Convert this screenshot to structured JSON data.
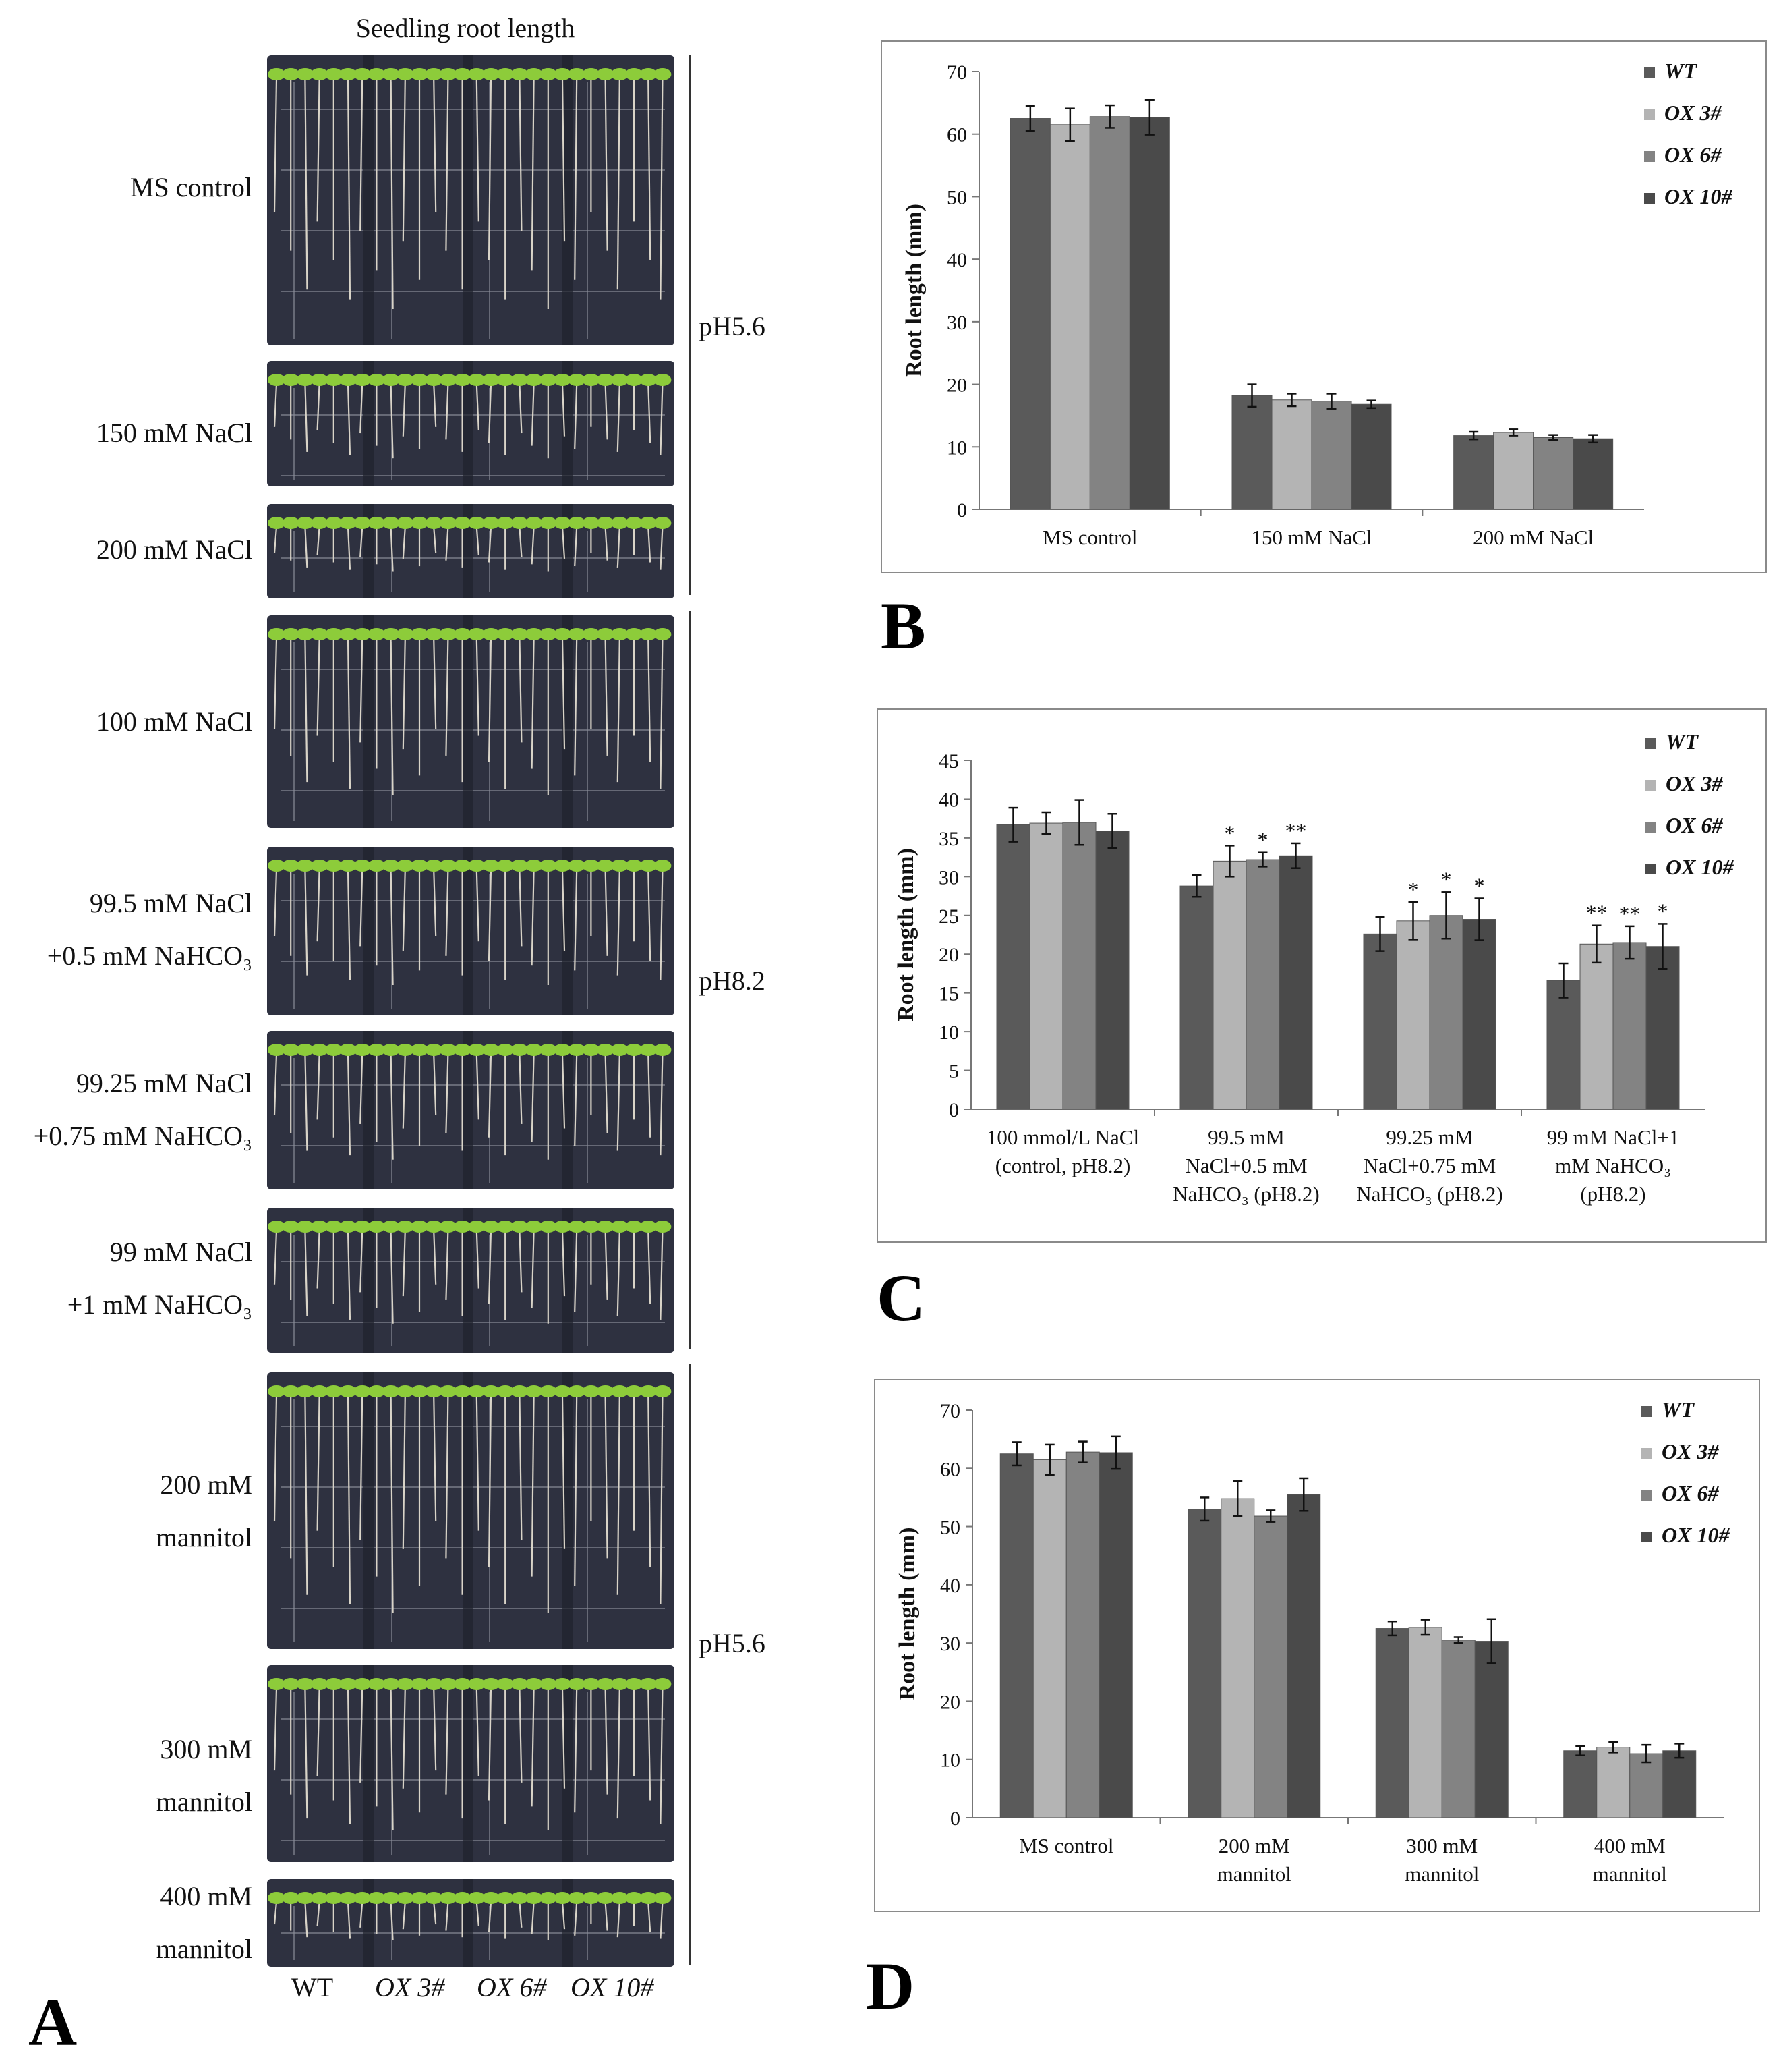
{
  "panel_a": {
    "title": "Seedling root length",
    "letter": "A",
    "plates": [
      {
        "label_lines": [
          "MS control"
        ]
      },
      {
        "label_lines": [
          "150 mM NaCl"
        ]
      },
      {
        "label_lines": [
          "200 mM NaCl"
        ]
      },
      {
        "label_lines": [
          "100 mM NaCl"
        ]
      },
      {
        "label_lines": [
          "99.5 mM NaCl",
          "+0.5 mM NaHCO₃"
        ]
      },
      {
        "label_lines": [
          "99.25 mM NaCl",
          "+0.75 mM NaHCO₃"
        ]
      },
      {
        "label_lines": [
          "99 mM NaCl",
          "+1 mM NaHCO₃"
        ]
      },
      {
        "label_lines": [
          "200 mM",
          "mannitol"
        ]
      },
      {
        "label_lines": [
          "300 mM",
          "mannitol"
        ]
      },
      {
        "label_lines": [
          "400 mM",
          "mannitol"
        ]
      }
    ],
    "ph_labels": [
      "pH5.6",
      "pH8.2",
      "pH5.6"
    ],
    "genotypes": [
      "WT",
      "OX 3#",
      "OX 6#",
      "OX 10#"
    ]
  },
  "colors": {
    "WT": "#5a5a5a",
    "OX 3#": "#b4b4b4",
    "OX 6#": "#838383",
    "OX 10#": "#4a4a4a",
    "plate_bg": "#2e3140",
    "leaf": "#8dcc3a",
    "root": "#d9d4c8"
  },
  "chart_data": [
    {
      "letter": "B",
      "type": "bar",
      "ylabel": "Root length (mm)",
      "ylim": [
        0,
        70
      ],
      "yticks": [
        0,
        10,
        20,
        30,
        40,
        50,
        60,
        70
      ],
      "categories": [
        [
          "MS control"
        ],
        [
          "150 mM NaCl"
        ],
        [
          "200 mM NaCl"
        ]
      ],
      "series": [
        {
          "name": "WT",
          "values": [
            62.5,
            18.2,
            11.8
          ],
          "errors": [
            2.0,
            1.8,
            0.6
          ],
          "sig": [
            "",
            "",
            ""
          ]
        },
        {
          "name": "OX 3#",
          "values": [
            61.5,
            17.5,
            12.3
          ],
          "errors": [
            2.6,
            1.0,
            0.5
          ],
          "sig": [
            "",
            "",
            ""
          ]
        },
        {
          "name": "OX 6#",
          "values": [
            62.8,
            17.3,
            11.5
          ],
          "errors": [
            1.8,
            1.2,
            0.4
          ],
          "sig": [
            "",
            "",
            ""
          ]
        },
        {
          "name": "OX 10#",
          "values": [
            62.7,
            16.8,
            11.3
          ],
          "errors": [
            2.8,
            0.6,
            0.6
          ],
          "sig": [
            "",
            "",
            ""
          ]
        }
      ]
    },
    {
      "letter": "C",
      "type": "bar",
      "ylabel": "Root length (mm)",
      "ylim": [
        0,
        45
      ],
      "yticks": [
        0,
        5,
        10,
        15,
        20,
        25,
        30,
        35,
        40,
        45
      ],
      "categories": [
        [
          "100 mmol/L NaCl",
          "(control, pH8.2)"
        ],
        [
          "99.5 mM",
          "NaCl+0.5 mM",
          "NaHCO₃ (pH8.2)"
        ],
        [
          "99.25 mM",
          "NaCl+0.75 mM",
          "NaHCO₃ (pH8.2)"
        ],
        [
          "99 mM NaCl+1",
          "mM NaHCO₃",
          "(pH8.2)"
        ]
      ],
      "series": [
        {
          "name": "WT",
          "values": [
            36.7,
            28.8,
            22.6,
            16.6
          ],
          "errors": [
            2.2,
            1.4,
            2.2,
            2.2
          ],
          "sig": [
            "",
            "",
            "",
            ""
          ]
        },
        {
          "name": "OX 3#",
          "values": [
            36.9,
            32.0,
            24.3,
            21.3
          ],
          "errors": [
            1.4,
            2.0,
            2.4,
            2.4
          ],
          "sig": [
            "",
            "*",
            "*",
            "**"
          ]
        },
        {
          "name": "OX 6#",
          "values": [
            37.0,
            32.2,
            25.0,
            21.5
          ],
          "errors": [
            2.9,
            0.9,
            3.0,
            2.1
          ],
          "sig": [
            "",
            "*",
            "*",
            "**"
          ]
        },
        {
          "name": "OX 10#",
          "values": [
            35.9,
            32.7,
            24.5,
            21.0
          ],
          "errors": [
            2.2,
            1.6,
            2.7,
            2.9
          ],
          "sig": [
            "",
            "**",
            "*",
            "*"
          ]
        }
      ]
    },
    {
      "letter": "D",
      "type": "bar",
      "ylabel": "Root length (mm)",
      "ylim": [
        0,
        70
      ],
      "yticks": [
        0,
        10,
        20,
        30,
        40,
        50,
        60,
        70
      ],
      "categories": [
        [
          "MS control"
        ],
        [
          "200 mM",
          "mannitol"
        ],
        [
          "300 mM",
          "mannitol"
        ],
        [
          "400 mM",
          "mannitol"
        ]
      ],
      "series": [
        {
          "name": "WT",
          "values": [
            62.5,
            53.0,
            32.5,
            11.5
          ],
          "errors": [
            2.0,
            2.0,
            1.2,
            0.8
          ],
          "sig": [
            "",
            "",
            "",
            ""
          ]
        },
        {
          "name": "OX 3#",
          "values": [
            61.5,
            54.8,
            32.7,
            12.1
          ],
          "errors": [
            2.6,
            3.0,
            1.3,
            0.9
          ],
          "sig": [
            "",
            "",
            "",
            ""
          ]
        },
        {
          "name": "OX 6#",
          "values": [
            62.8,
            51.8,
            30.5,
            11.0
          ],
          "errors": [
            1.8,
            1.0,
            0.5,
            1.5
          ],
          "sig": [
            "",
            "",
            "",
            ""
          ]
        },
        {
          "name": "OX 10#",
          "values": [
            62.7,
            55.5,
            30.3,
            11.5
          ],
          "errors": [
            2.8,
            2.8,
            3.8,
            1.2
          ],
          "sig": [
            "",
            "",
            "",
            ""
          ]
        }
      ]
    }
  ]
}
